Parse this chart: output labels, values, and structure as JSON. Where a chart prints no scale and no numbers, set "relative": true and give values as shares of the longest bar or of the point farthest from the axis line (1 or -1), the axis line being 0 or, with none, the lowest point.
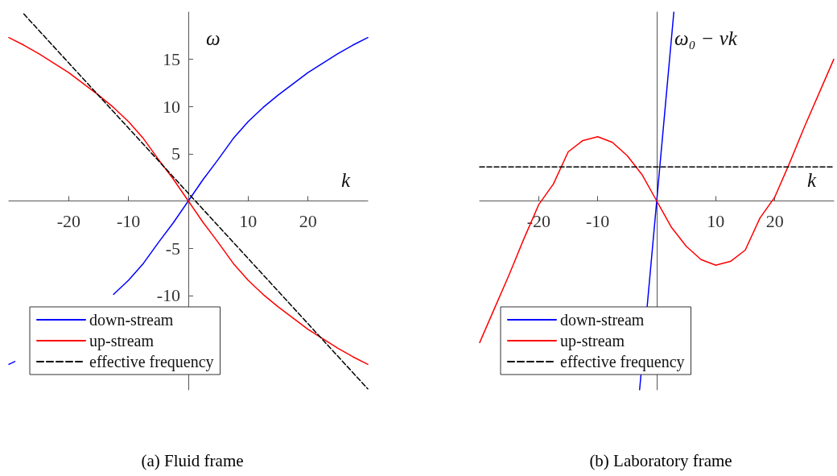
{
  "chart_data": [
    {
      "type": "line",
      "title": "(a) Fluid frame",
      "xlabel": "k",
      "ylabel": "ω",
      "xlim": [
        -30,
        30
      ],
      "ylim": [
        -20,
        20
      ],
      "xticks": [
        -20,
        -10,
        10,
        20
      ],
      "yticks": [
        -10,
        -5,
        5,
        10,
        15
      ],
      "legend": "bottom left",
      "grid": false,
      "marker": "none",
      "series": [
        {
          "name": "down-stream",
          "color": "#0000ff",
          "line_style": "solid",
          "x": [
            -30,
            -29,
            -27.5,
            -25,
            -22.5,
            -20,
            -17.5,
            -15,
            -12.5,
            -10,
            -7.5,
            -5,
            -2.5,
            0,
            2.5,
            5,
            7.5,
            10,
            12.5,
            15,
            17.5,
            20,
            22.5,
            25,
            27.5,
            30
          ],
          "values": [
            -17.3,
            -17.0,
            null,
            null,
            null,
            null,
            null,
            null,
            -9.9,
            -8.4,
            -6.6,
            -4.4,
            -2.3,
            0,
            2.3,
            4.4,
            6.6,
            8.4,
            9.9,
            11.2,
            12.4,
            13.6,
            14.6,
            15.6,
            16.5,
            17.3
          ]
        },
        {
          "name": "up-stream",
          "color": "#ff0000",
          "line_style": "solid",
          "x": [
            -30,
            -27.5,
            -25,
            -22.5,
            -20,
            -17.5,
            -15,
            -12.5,
            -10,
            -7.5,
            -5,
            -2.5,
            0,
            2.5,
            5,
            7.5,
            10,
            12.5,
            15,
            17.5,
            20,
            22.5,
            25,
            27.5,
            30
          ],
          "values": [
            17.3,
            16.5,
            15.6,
            14.6,
            13.6,
            12.4,
            11.2,
            9.9,
            8.4,
            6.6,
            4.4,
            2.3,
            0,
            -2.3,
            -4.4,
            -6.6,
            -8.4,
            -9.9,
            -11.2,
            -12.4,
            -13.6,
            -14.6,
            -15.6,
            -16.5,
            -17.3
          ]
        },
        {
          "name": "effective frequency",
          "color": "#000000",
          "line_style": "dashed",
          "x": [
            -27.5,
            30
          ],
          "values": [
            19.8,
            -19.9
          ]
        }
      ]
    },
    {
      "type": "line",
      "title": "(b) Laboratory frame",
      "xlabel": "k",
      "ylabel": "ω₀ − vk",
      "xlim": [
        -30,
        30
      ],
      "relative": true,
      "tick_labels": "x",
      "xticks": [
        -20,
        -10,
        10,
        20
      ],
      "legend": "bottom left",
      "grid": false,
      "marker": "none",
      "series": [
        {
          "name": "down-stream",
          "color": "#0000ff",
          "line_style": "solid",
          "x": [
            -2.9,
            2.9
          ],
          "values": [
            -1,
            1
          ]
        },
        {
          "name": "up-stream",
          "color": "#ff0000",
          "line_style": "solid",
          "x": [
            -30,
            -27.5,
            -25,
            -22.5,
            -20,
            -17.5,
            -15,
            -12.5,
            -10,
            -7.5,
            -5,
            -2.5,
            0,
            2.5,
            5,
            7.5,
            10,
            12.5,
            15,
            17.5,
            20,
            22.5,
            25,
            27.5,
            30
          ],
          "values": [
            -0.75,
            -0.57,
            -0.39,
            -0.2,
            -0.02,
            0.09,
            0.26,
            0.32,
            0.34,
            0.31,
            0.24,
            0.14,
            0,
            -0.14,
            -0.24,
            -0.31,
            -0.34,
            -0.32,
            -0.26,
            -0.09,
            0.02,
            0.2,
            0.39,
            0.57,
            0.75
          ]
        },
        {
          "name": "effective frequency",
          "color": "#000000",
          "line_style": "dashed",
          "x": [
            -30,
            30
          ],
          "values": [
            0.18,
            0.18
          ]
        }
      ]
    }
  ]
}
